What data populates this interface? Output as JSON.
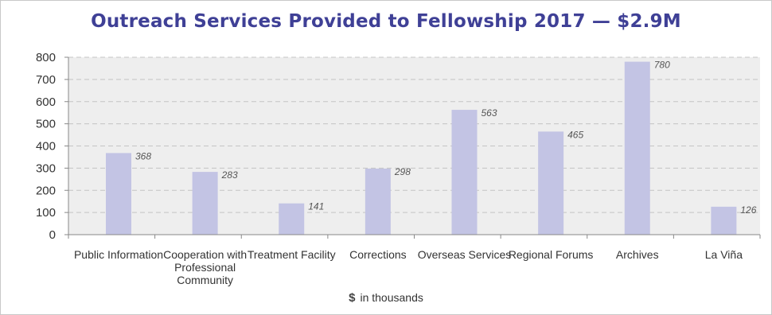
{
  "chart_data": {
    "type": "bar",
    "title": "Outreach Services Provided to Fellowship 2017 — $2.9M",
    "categories": [
      "Public Information",
      "Cooperation with Professional Community",
      "Treatment Facility",
      "Corrections",
      "Overseas Services",
      "Regional Forums",
      "Archives",
      "La Viña"
    ],
    "values": [
      368,
      283,
      141,
      298,
      563,
      465,
      780,
      126
    ],
    "data_labels": [
      "368",
      "283",
      "141",
      "298",
      "563",
      "465",
      "780",
      "126"
    ],
    "ylim": [
      0,
      800
    ],
    "yticks": [
      0,
      100,
      200,
      300,
      400,
      500,
      600,
      700,
      800
    ],
    "ylabel": "",
    "xlabel": {
      "symbol": "$",
      "text": "in thousands"
    },
    "grid": true,
    "legend": "none",
    "colors": {
      "bar": "#c3c4e4",
      "plot_bg": "#eeeeee",
      "title": "#3f4096",
      "grid": "#c4c4c4"
    }
  }
}
